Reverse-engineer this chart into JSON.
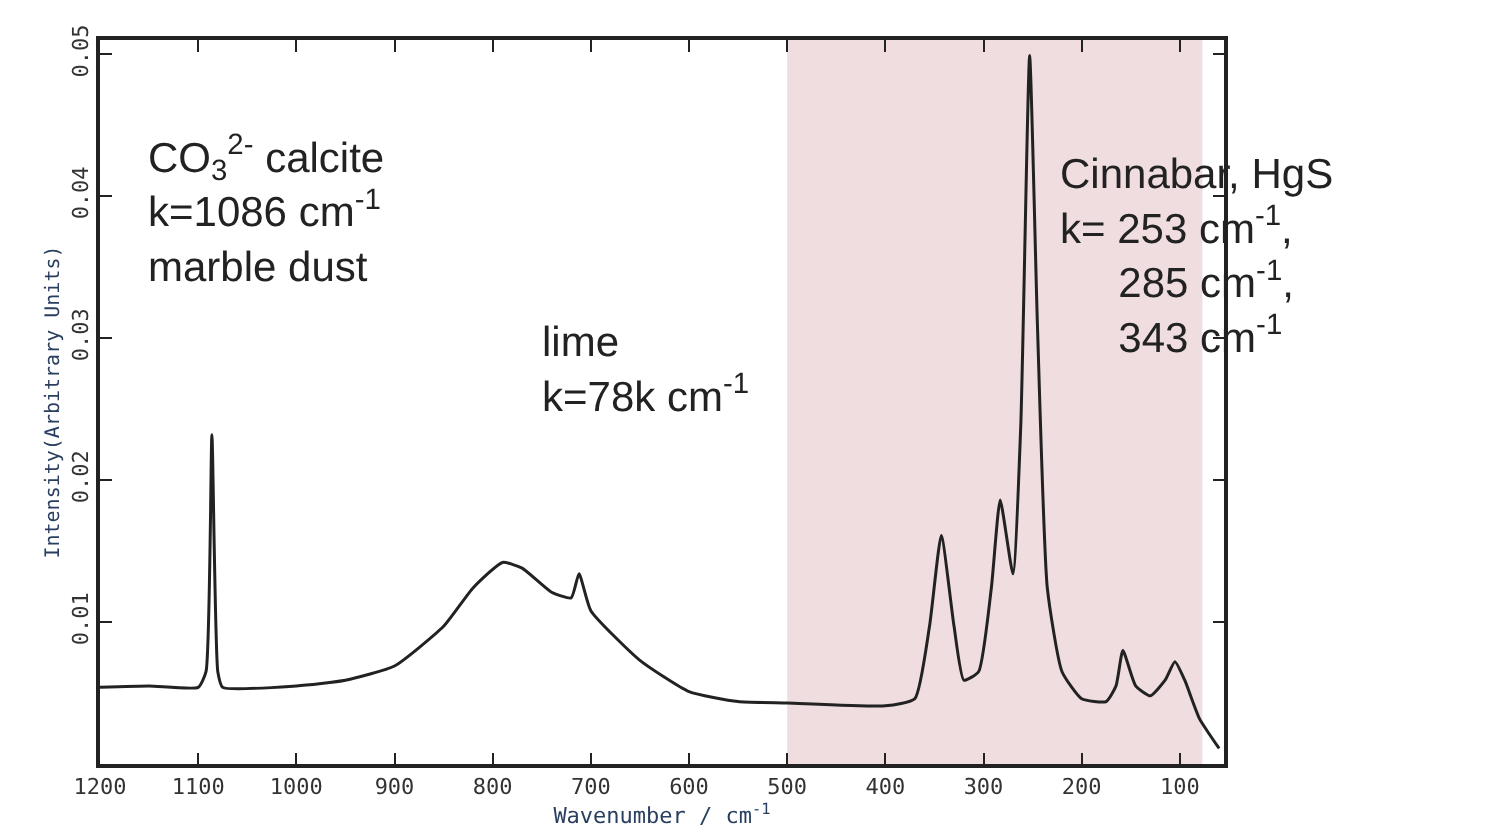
{
  "chart_data": {
    "type": "line",
    "xlabel": "Wavenumber / cm$^{-1}$",
    "ylabel": "Intensity(Arbitrary Units)",
    "x": [
      1200,
      1150,
      1100,
      1092,
      1086,
      1080,
      1075,
      1000,
      950,
      900,
      850,
      820,
      790,
      770,
      740,
      720,
      712,
      700,
      650,
      600,
      550,
      500,
      400,
      370,
      355,
      343,
      330,
      320,
      305,
      292,
      283,
      270,
      262,
      253,
      245,
      235,
      220,
      200,
      175,
      165,
      158,
      145,
      130,
      115,
      105,
      95,
      80,
      60
    ],
    "series": [
      {
        "color": "#222222",
        "values": [
          0.0054,
          0.0055,
          0.0054,
          0.0065,
          0.0232,
          0.0065,
          0.0054,
          0.0055,
          0.0059,
          0.0069,
          0.0097,
          0.0124,
          0.0142,
          0.0138,
          0.0121,
          0.0117,
          0.0134,
          0.0108,
          0.0073,
          0.0051,
          0.0044,
          0.0043,
          0.0041,
          0.0046,
          0.0097,
          0.0161,
          0.0097,
          0.0059,
          0.0065,
          0.0124,
          0.0186,
          0.0134,
          0.0239,
          0.0499,
          0.0308,
          0.0124,
          0.0065,
          0.0046,
          0.0044,
          0.0055,
          0.008,
          0.0055,
          0.0048,
          0.0059,
          0.0072,
          0.0059,
          0.0032,
          0.0011
        ]
      }
    ],
    "xlim": [
      1200,
      55
    ],
    "ylim": [
      0,
      0.051
    ],
    "xticks": [
      1200,
      1100,
      1000,
      900,
      800,
      700,
      600,
      500,
      400,
      300,
      200,
      100
    ],
    "yticks": [
      0.01,
      0.02,
      0.03,
      0.04,
      0.05
    ],
    "bands": [
      {
        "axis": "x",
        "from": 500,
        "to": 77,
        "color": "#efdde0"
      }
    ],
    "annotations": [
      "CO$_{3}$$^{2-}$ calcite\nk=1086 cm$^{-1}$\nmarble dust",
      "lime\nk=78k cm$^{-1}$",
      "Cinnabar, HgS\nk= 253 cm$^{-1}$,\n     285 cm$^{-1}$,\n     343 cm$^{-1}$"
    ],
    "grid": false,
    "legend": false,
    "marker": "none",
    "line_style": "solid"
  }
}
